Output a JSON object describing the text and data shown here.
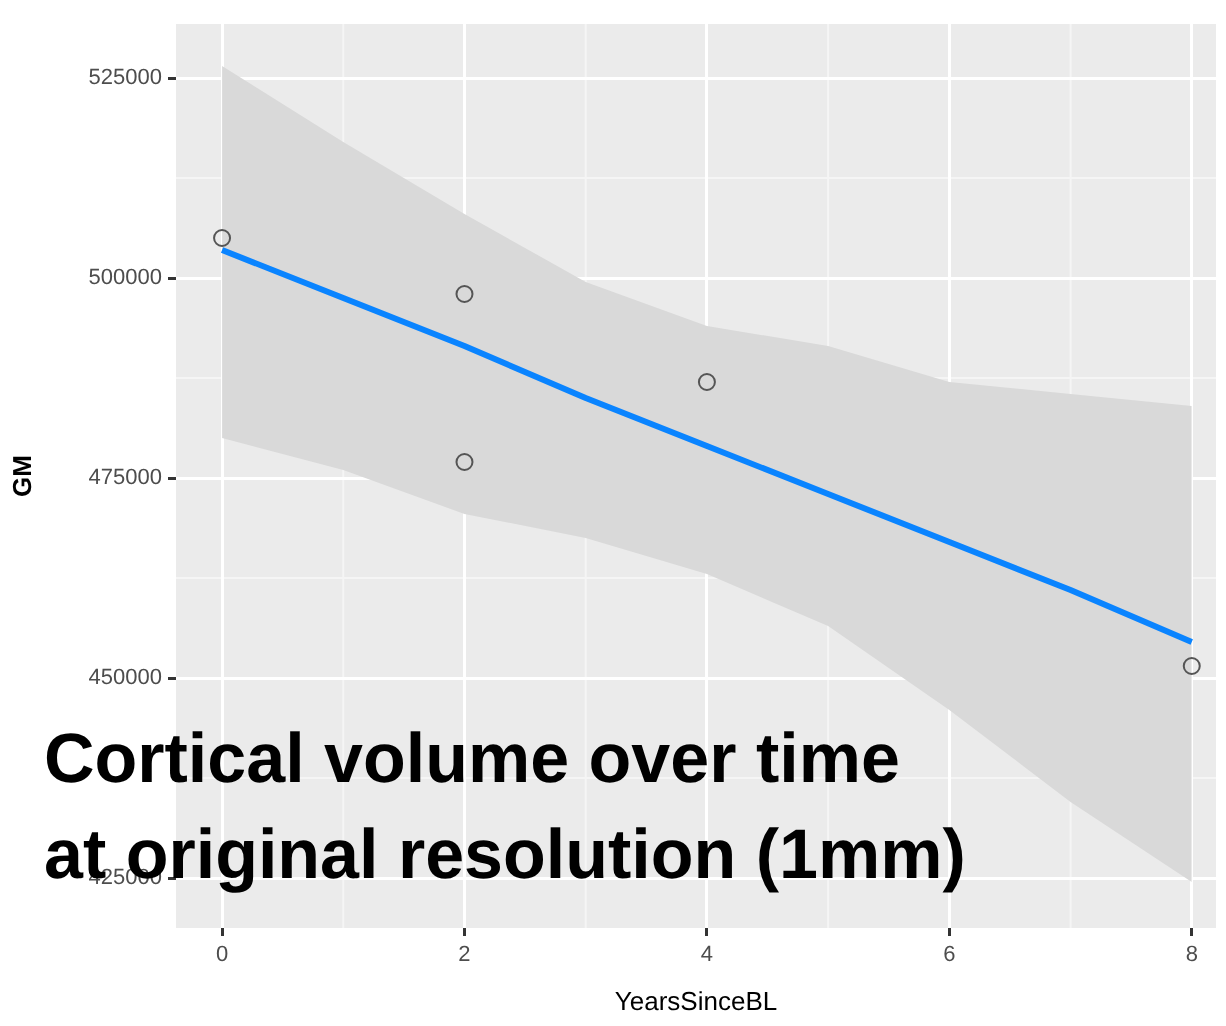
{
  "chart_data": {
    "type": "scatter",
    "xlabel": "YearsSinceBL",
    "ylabel": "GM",
    "annotations": [
      "Cortical volume over time\nat original resolution (1mm)"
    ],
    "xlim": [
      -0.38,
      8.2
    ],
    "xticks": [
      0,
      2,
      4,
      6,
      8
    ],
    "ylim": [
      418750,
      531750
    ],
    "yticks": [
      425000,
      450000,
      475000,
      500000,
      525000
    ],
    "grid": true,
    "legend": false,
    "series": [
      {
        "marker": "circle",
        "color": "#555555",
        "x": [
          0,
          2,
          2,
          4,
          8
        ],
        "values": [
          505000,
          498000,
          477000,
          487000,
          451500
        ]
      },
      {
        "type": "line",
        "color": "#0a84ff",
        "x": [
          0,
          1,
          2,
          3,
          4,
          5,
          6,
          7,
          8
        ],
        "values": [
          503500,
          497500,
          491500,
          485000,
          479000,
          473000,
          467000,
          461000,
          454500
        ],
        "lower": [
          480000,
          476000,
          470500,
          467500,
          463000,
          456500,
          446000,
          434500,
          424500
        ],
        "upper": [
          526500,
          517000,
          508000,
          499500,
          494000,
          491500,
          487000,
          485500,
          484000
        ]
      }
    ]
  }
}
